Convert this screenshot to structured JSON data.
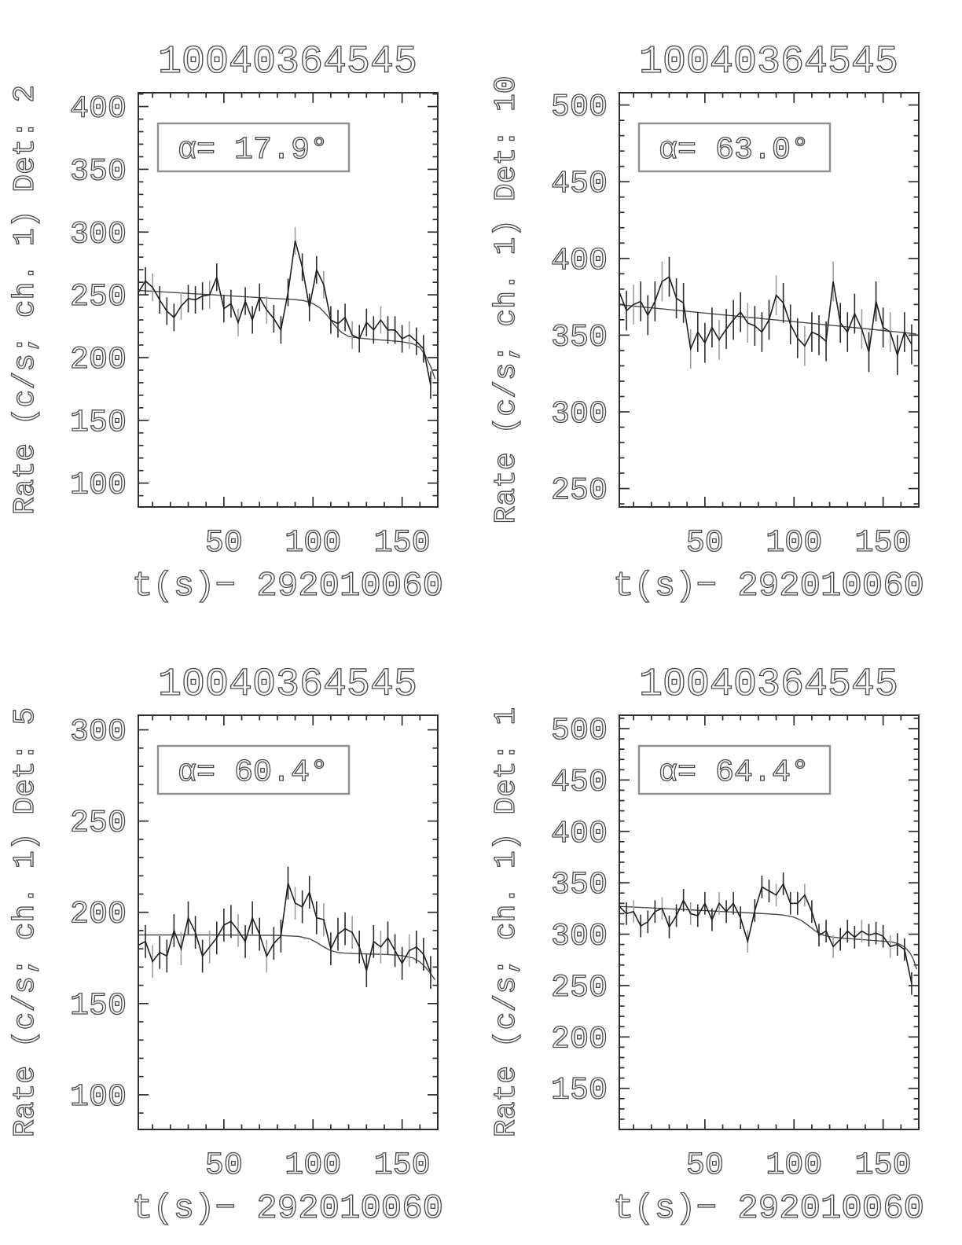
{
  "window": {
    "background": "#ffffff"
  },
  "style": {
    "text_color": "#4d4d4d",
    "axis_color": "#2f2f2f",
    "data_color": "#1f1f1f",
    "model_color": "#4a4a4a",
    "error_bar_colors": [
      "#2c2c2c",
      "#9e9e9e"
    ],
    "annotation_border": "#8f8f8f"
  },
  "chart_data": [
    {
      "type": "line",
      "name": "det-2",
      "title": "10040364545",
      "ylabel": "Rate (c/s; ch. 1) Det: 2",
      "xlabel": "t(s)−  292010060",
      "annotation": "α=  17.9°",
      "legend_position": "none",
      "grid": false,
      "xlim": [
        2,
        170
      ],
      "ylim": [
        81,
        411
      ],
      "xticks": [
        50,
        100,
        150
      ],
      "yticks": [
        100,
        150,
        200,
        250,
        300,
        350,
        400
      ],
      "minor_step": 10,
      "err": 11,
      "x": [
        2,
        6,
        10,
        14,
        18,
        22,
        26,
        30,
        34,
        38,
        42,
        46,
        50,
        54,
        58,
        62,
        66,
        70,
        74,
        78,
        82,
        86,
        90,
        94,
        98,
        102,
        106,
        110,
        114,
        118,
        122,
        126,
        130,
        134,
        138,
        142,
        146,
        150,
        154,
        158,
        162,
        166
      ],
      "y": [
        252,
        261,
        256,
        246,
        237,
        232,
        241,
        247,
        246,
        249,
        250,
        264,
        239,
        243,
        228,
        245,
        230,
        248,
        238,
        231,
        222,
        252,
        293,
        272,
        240,
        270,
        258,
        230,
        227,
        232,
        218,
        215,
        228,
        222,
        230,
        222,
        222,
        215,
        218,
        213,
        207,
        178
      ],
      "model": [
        [
          2,
          253.5
        ],
        [
          20,
          252
        ],
        [
          40,
          250.3
        ],
        [
          60,
          248.6
        ],
        [
          80,
          247
        ],
        [
          90,
          246.2
        ],
        [
          95,
          245.3
        ],
        [
          100,
          243
        ],
        [
          104,
          239.5
        ],
        [
          108,
          233.5
        ],
        [
          112,
          226
        ],
        [
          116,
          220
        ],
        [
          120,
          216.8
        ],
        [
          126,
          215.5
        ],
        [
          134,
          214.5
        ],
        [
          142,
          213.6
        ],
        [
          150,
          212.6
        ],
        [
          156,
          211
        ],
        [
          160,
          208
        ],
        [
          163,
          202
        ],
        [
          166,
          193
        ],
        [
          168.5,
          183
        ]
      ]
    },
    {
      "type": "line",
      "name": "det-10",
      "title": "10040364545",
      "ylabel": "Rate (c/s; ch. 1) Det: 10",
      "xlabel": "t(s)−  292010060",
      "annotation": "α=  63.0°",
      "legend_position": "none",
      "grid": false,
      "xlim": [
        2,
        170
      ],
      "ylim": [
        238,
        508
      ],
      "xticks": [
        50,
        100,
        150
      ],
      "yticks": [
        250,
        300,
        350,
        400,
        450,
        500
      ],
      "minor_step": 10,
      "err": 13,
      "x": [
        2,
        6,
        10,
        14,
        18,
        22,
        26,
        30,
        34,
        38,
        42,
        46,
        50,
        54,
        58,
        62,
        66,
        70,
        74,
        78,
        82,
        86,
        90,
        94,
        98,
        102,
        106,
        110,
        114,
        118,
        122,
        126,
        130,
        134,
        138,
        142,
        146,
        150,
        154,
        158,
        162,
        166
      ],
      "y": [
        378,
        366,
        370,
        372,
        363,
        372,
        385,
        388,
        374,
        371,
        341,
        352,
        345,
        355,
        347,
        354,
        360,
        365,
        358,
        356,
        352,
        360,
        376,
        371,
        357,
        348,
        343,
        352,
        350,
        346,
        385,
        358,
        352,
        364,
        354,
        339,
        372,
        355,
        352,
        337,
        352,
        344
      ],
      "model": [
        [
          2,
          369.8
        ],
        [
          40,
          365.5
        ],
        [
          80,
          361
        ],
        [
          120,
          356.5
        ],
        [
          150,
          353
        ],
        [
          168.5,
          350.8
        ]
      ]
    },
    {
      "type": "line",
      "name": "det-5",
      "title": "10040364545",
      "ylabel": "Rate (c/s; ch. 1) Det: 5",
      "xlabel": "t(s)−  292010060",
      "annotation": "α=  60.4°",
      "legend_position": "none",
      "grid": false,
      "xlim": [
        2,
        170
      ],
      "ylim": [
        81,
        308
      ],
      "xticks": [
        50,
        100,
        150
      ],
      "yticks": [
        100,
        150,
        200,
        250,
        300
      ],
      "minor_step": 10,
      "err": 9,
      "x": [
        2,
        6,
        10,
        14,
        18,
        22,
        26,
        30,
        34,
        38,
        42,
        46,
        50,
        54,
        58,
        62,
        66,
        70,
        74,
        78,
        82,
        86,
        90,
        94,
        98,
        102,
        106,
        110,
        114,
        118,
        122,
        126,
        130,
        134,
        138,
        142,
        146,
        150,
        154,
        158,
        162,
        166
      ],
      "y": [
        182,
        184,
        173,
        178,
        176,
        190,
        180,
        197,
        189,
        176,
        181,
        186,
        193,
        195,
        190,
        184,
        197,
        188,
        176,
        183,
        187,
        216,
        205,
        203,
        211,
        197,
        196,
        180,
        188,
        191,
        189,
        181,
        168,
        184,
        181,
        186,
        179,
        172,
        179,
        181,
        177,
        167
      ],
      "model": [
        [
          2,
          187.6
        ],
        [
          40,
          187.6
        ],
        [
          80,
          187.4
        ],
        [
          92,
          186.8
        ],
        [
          98,
          185.5
        ],
        [
          102,
          183.5
        ],
        [
          106,
          181
        ],
        [
          110,
          179
        ],
        [
          114,
          178
        ],
        [
          118,
          177.6
        ],
        [
          126,
          177.3
        ],
        [
          134,
          177.1
        ],
        [
          142,
          176.9
        ],
        [
          150,
          176.3
        ],
        [
          156,
          175
        ],
        [
          160,
          172.8
        ],
        [
          163,
          170
        ],
        [
          166,
          166.5
        ],
        [
          168.5,
          163
        ]
      ]
    },
    {
      "type": "line",
      "name": "det-1",
      "title": "10040364545",
      "ylabel": "Rate (c/s; ch. 1) Det: 1",
      "xlabel": "t(s)−  292010060",
      "annotation": "α=  64.4°",
      "legend_position": "none",
      "grid": false,
      "xlim": [
        2,
        170
      ],
      "ylim": [
        110,
        513
      ],
      "xticks": [
        50,
        100,
        150
      ],
      "yticks": [
        150,
        200,
        250,
        300,
        350,
        400,
        450,
        500
      ],
      "minor_step": 10,
      "err": 11,
      "x": [
        2,
        6,
        10,
        14,
        18,
        22,
        26,
        30,
        34,
        38,
        42,
        46,
        50,
        54,
        58,
        62,
        66,
        70,
        74,
        78,
        82,
        86,
        90,
        94,
        98,
        102,
        106,
        110,
        114,
        118,
        122,
        126,
        130,
        134,
        138,
        142,
        146,
        150,
        154,
        158,
        162,
        166
      ],
      "y": [
        327,
        320,
        322,
        308,
        312,
        322,
        325,
        307,
        318,
        333,
        320,
        318,
        330,
        314,
        330,
        322,
        330,
        316,
        293,
        323,
        346,
        342,
        338,
        349,
        330,
        330,
        338,
        322,
        299,
        303,
        288,
        295,
        303,
        297,
        303,
        299,
        301,
        298,
        288,
        290,
        285,
        252
      ],
      "model": [
        [
          2,
          327
        ],
        [
          20,
          325.5
        ],
        [
          40,
          323.8
        ],
        [
          60,
          322
        ],
        [
          80,
          320.3
        ],
        [
          90,
          319.3
        ],
        [
          95,
          318.3
        ],
        [
          100,
          316.5
        ],
        [
          104,
          313.5
        ],
        [
          108,
          308.5
        ],
        [
          112,
          303
        ],
        [
          116,
          299.3
        ],
        [
          120,
          297.5
        ],
        [
          128,
          296
        ],
        [
          136,
          295
        ],
        [
          144,
          294
        ],
        [
          150,
          293.2
        ],
        [
          155,
          292.3
        ],
        [
          159,
          290.5
        ],
        [
          162,
          287.5
        ],
        [
          165,
          282
        ],
        [
          167,
          275.5
        ],
        [
          168.8,
          266
        ]
      ]
    }
  ]
}
